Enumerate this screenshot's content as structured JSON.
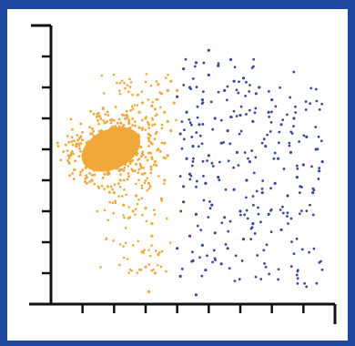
{
  "colors": {
    "frame": "#1f48a3",
    "axis": "#111111",
    "cluster_orange": "#f0a83a",
    "cluster_blue": "#3b4b9c"
  },
  "chart_data": {
    "type": "scatter",
    "title": "",
    "xlabel": "",
    "ylabel": "",
    "xlim": [
      0,
      9
    ],
    "ylim": [
      0,
      9
    ],
    "x_ticks": [
      0,
      1,
      2,
      3,
      4,
      5,
      6,
      7,
      8,
      9
    ],
    "y_ticks": [
      0,
      1,
      2,
      3,
      4,
      5,
      6,
      7,
      8,
      9
    ],
    "grid": false,
    "legend": "none",
    "series": [
      {
        "color": "#f0a83a",
        "shape": "blob",
        "points": [
          [
            1.5,
            5.1
          ],
          [
            1.8,
            5.2
          ],
          [
            2.1,
            4.9
          ],
          [
            1.4,
            4.6
          ],
          [
            2.3,
            5.3
          ],
          [
            1.9,
            4.7
          ],
          [
            1.2,
            5.0
          ],
          [
            2.5,
            5.5
          ],
          [
            1.6,
            5.6
          ],
          [
            2.0,
            5.0
          ],
          [
            2.8,
            5.7
          ],
          [
            3.0,
            6.0
          ],
          [
            2.4,
            6.1
          ],
          [
            3.2,
            6.4
          ],
          [
            3.5,
            6.8
          ],
          [
            3.3,
            6.3
          ],
          [
            2.9,
            6.5
          ],
          [
            3.7,
            6.9
          ],
          [
            3.4,
            7.1
          ],
          [
            3.1,
            5.8
          ],
          [
            2.6,
            4.3
          ],
          [
            2.2,
            4.0
          ],
          [
            1.8,
            3.8
          ],
          [
            2.9,
            4.2
          ],
          [
            3.1,
            3.9
          ],
          [
            2.7,
            3.5
          ],
          [
            3.0,
            3.1
          ],
          [
            2.5,
            2.8
          ],
          [
            3.2,
            2.6
          ],
          [
            2.3,
            3.2
          ],
          [
            3.3,
            4.6
          ],
          [
            3.6,
            4.0
          ],
          [
            3.5,
            3.4
          ],
          [
            3.2,
            2.2
          ],
          [
            3.4,
            1.6
          ],
          [
            3.0,
            1.2
          ],
          [
            3.3,
            1.0
          ],
          [
            3.1,
            0.4
          ],
          [
            2.6,
            3.0
          ],
          [
            2.0,
            3.6
          ],
          [
            1.0,
            5.3
          ],
          [
            0.8,
            5.1
          ],
          [
            1.1,
            4.4
          ],
          [
            1.3,
            4.0
          ],
          [
            1.7,
            4.2
          ],
          [
            2.1,
            4.4
          ],
          [
            2.6,
            5.0
          ],
          [
            2.4,
            4.6
          ],
          [
            1.3,
            5.5
          ],
          [
            1.0,
            4.8
          ],
          [
            3.6,
            5.2
          ],
          [
            3.8,
            5.6
          ],
          [
            3.7,
            4.8
          ],
          [
            3.4,
            5.0
          ],
          [
            2.8,
            6.2
          ],
          [
            3.6,
            6.2
          ],
          [
            3.9,
            6.5
          ],
          [
            3.8,
            7.2
          ],
          [
            4.0,
            6.9
          ],
          [
            3.7,
            5.9
          ]
        ]
      },
      {
        "color": "#3b4b9c",
        "shape": "dots",
        "points": [
          [
            4.2,
            7.6
          ],
          [
            4.6,
            7.8
          ],
          [
            5.0,
            7.4
          ],
          [
            4.4,
            7.0
          ],
          [
            5.3,
            7.7
          ],
          [
            5.8,
            7.2
          ],
          [
            4.8,
            6.6
          ],
          [
            5.5,
            6.9
          ],
          [
            6.1,
            7.3
          ],
          [
            6.5,
            6.8
          ],
          [
            4.3,
            6.2
          ],
          [
            4.7,
            5.8
          ],
          [
            5.2,
            6.0
          ],
          [
            5.6,
            5.6
          ],
          [
            6.0,
            6.1
          ],
          [
            6.4,
            5.9
          ],
          [
            6.9,
            6.2
          ],
          [
            7.3,
            5.8
          ],
          [
            7.7,
            6.0
          ],
          [
            8.1,
            5.4
          ],
          [
            4.5,
            5.1
          ],
          [
            5.0,
            4.8
          ],
          [
            5.4,
            5.2
          ],
          [
            5.9,
            4.9
          ],
          [
            6.3,
            4.6
          ],
          [
            6.8,
            5.1
          ],
          [
            7.2,
            4.7
          ],
          [
            7.6,
            4.9
          ],
          [
            8.0,
            4.5
          ],
          [
            8.5,
            4.3
          ],
          [
            4.4,
            4.2
          ],
          [
            4.9,
            3.9
          ],
          [
            5.3,
            4.1
          ],
          [
            5.8,
            3.7
          ],
          [
            6.2,
            4.0
          ],
          [
            6.7,
            3.6
          ],
          [
            7.1,
            3.9
          ],
          [
            7.5,
            3.5
          ],
          [
            7.9,
            3.8
          ],
          [
            8.3,
            3.6
          ],
          [
            4.2,
            3.3
          ],
          [
            4.6,
            2.9
          ],
          [
            5.1,
            3.2
          ],
          [
            5.5,
            2.8
          ],
          [
            6.0,
            3.0
          ],
          [
            6.4,
            2.6
          ],
          [
            6.9,
            2.9
          ],
          [
            7.3,
            2.4
          ],
          [
            4.4,
            2.2
          ],
          [
            4.8,
            1.9
          ],
          [
            5.2,
            2.3
          ],
          [
            5.6,
            1.8
          ],
          [
            6.1,
            2.1
          ],
          [
            4.5,
            1.4
          ],
          [
            4.9,
            1.1
          ],
          [
            5.4,
            1.3
          ],
          [
            4.1,
            0.9
          ],
          [
            4.6,
            0.3
          ],
          [
            4.0,
            1.8
          ],
          [
            5.0,
            8.2
          ],
          [
            4.1,
            5.5
          ],
          [
            4.3,
            4.7
          ],
          [
            4.0,
            6.7
          ],
          [
            4.2,
            3.8
          ],
          [
            7.0,
            6.6
          ],
          [
            6.6,
            7.0
          ],
          [
            5.7,
            7.9
          ],
          [
            8.4,
            5.0
          ],
          [
            8.6,
            4.6
          ],
          [
            7.8,
            4.1
          ]
        ]
      }
    ]
  }
}
